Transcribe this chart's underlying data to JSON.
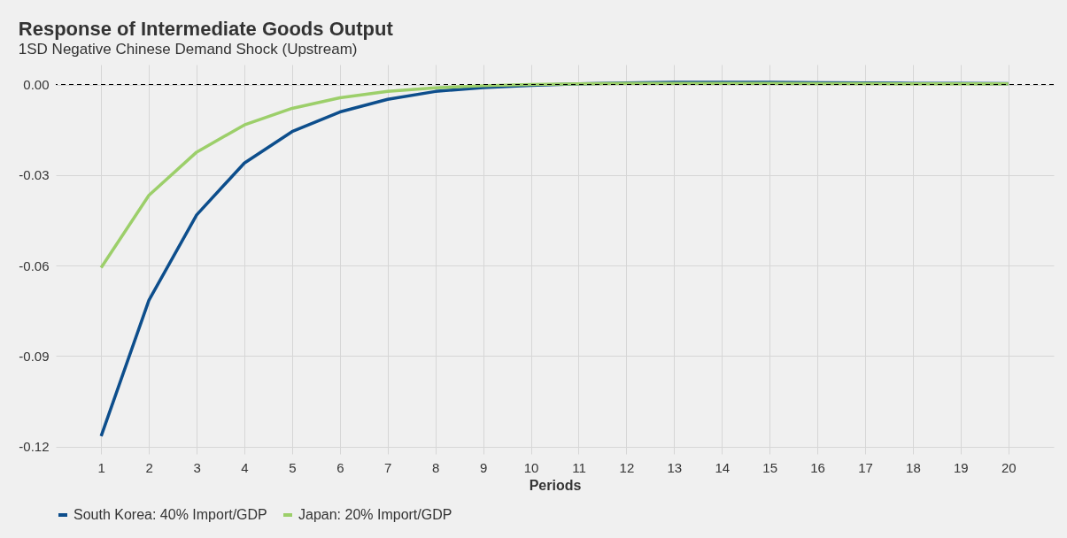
{
  "chart_data": {
    "type": "line",
    "title": "Response of Intermediate Goods Output",
    "subtitle": "1SD Negative Chinese Demand Shock (Upstream)",
    "xlabel": "Periods",
    "x": [
      1,
      2,
      3,
      4,
      5,
      6,
      7,
      8,
      9,
      10,
      11,
      12,
      13,
      14,
      15,
      16,
      17,
      18,
      19,
      20
    ],
    "series": [
      {
        "name": "South Korea: 40% Import/GDP",
        "color": "#0d4e8c",
        "values": [
          -0.1165,
          -0.0715,
          -0.0432,
          -0.026,
          -0.0156,
          -0.0091,
          -0.0049,
          -0.0023,
          -0.001,
          -0.0003,
          0.0002,
          0.0005,
          0.0007,
          0.0007,
          0.0007,
          0.0006,
          0.0005,
          0.0004,
          0.0004,
          0.0003
        ]
      },
      {
        "name": "Japan: 20% Import/GDP",
        "color": "#9ccf6a",
        "values": [
          -0.0607,
          -0.0367,
          -0.0224,
          -0.0134,
          -0.0079,
          -0.0044,
          -0.0023,
          -0.0011,
          -0.0004,
          0,
          0.0002,
          0.0004,
          0.0004,
          0.0004,
          0.0004,
          0.0003,
          0.0003,
          0.0002,
          0.0002,
          0.0002
        ]
      }
    ],
    "xlim": [
      0.05,
      20.95
    ],
    "xticks": [
      1,
      2,
      3,
      4,
      5,
      6,
      7,
      8,
      9,
      10,
      11,
      12,
      13,
      14,
      15,
      16,
      17,
      18,
      19,
      20
    ],
    "ylim": [
      -0.1224,
      0.0066
    ],
    "yticks": [
      {
        "value": 0,
        "label": "0.00"
      },
      -0.03,
      -0.06,
      -0.09,
      -0.12
    ],
    "ref_lines": [
      {
        "axis": "y",
        "value": 0,
        "color": "#000000",
        "line_style": "dashed"
      }
    ],
    "grid": true,
    "legend": "bottom",
    "marker": "none",
    "line_style": "solid"
  }
}
